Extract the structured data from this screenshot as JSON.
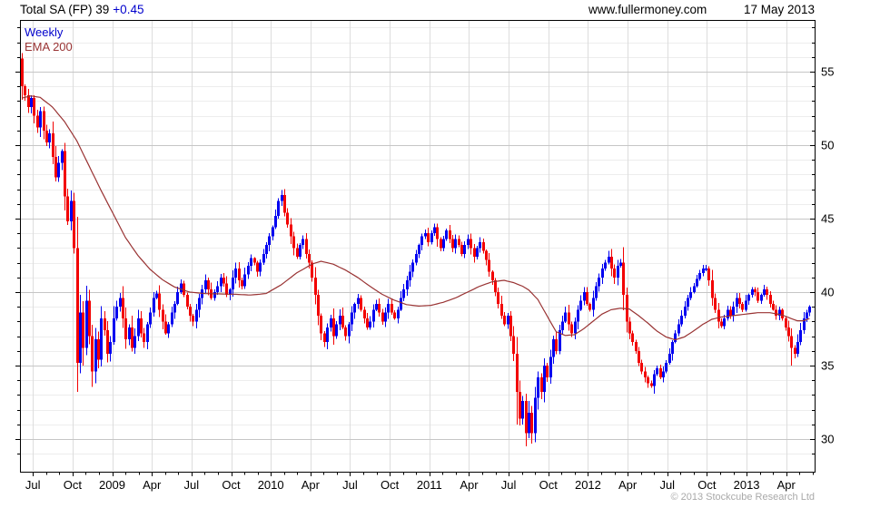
{
  "header": {
    "title": "Total SA (FP) 39",
    "change": "+0.45",
    "site": "www.fullermoney.com",
    "date": "17 May 2013"
  },
  "legend": {
    "weekly": "Weekly",
    "ema": "EMA 200"
  },
  "footer": {
    "copyright": "© 2013 Stockcube Research Ltd"
  },
  "colors": {
    "accent_blue": "#0000cc",
    "ema_red": "#993333",
    "text_black": "#000000",
    "copyright_gray": "#a9a9a9"
  },
  "chart_data": {
    "type": "candlestick",
    "title": "Total SA (FP) weekly candlestick chart with 200-period EMA, Jun 2008 - May 2013",
    "x_axis": {
      "tick_labels": [
        "Jul",
        "Oct",
        "2009",
        "Apr",
        "Jul",
        "Oct",
        "2010",
        "Apr",
        "Jul",
        "Oct",
        "2011",
        "Apr",
        "Jul",
        "Oct",
        "2012",
        "Apr",
        "Jul",
        "Oct",
        "2013",
        "Apr"
      ],
      "start": "Jun 2008",
      "end": "May 2013",
      "minor_tick": "monthly",
      "major_tick": "quarterly"
    },
    "y_axis": {
      "side": "right",
      "tick_values": [
        30,
        35,
        40,
        45,
        50,
        55
      ],
      "minor_step": 1,
      "range": [
        28.0,
        58.5
      ]
    },
    "grid": {
      "major_color": "#c6c6c6",
      "minor_color": "#ededed",
      "vertical_color": "#dddddd",
      "border_color": "#000000",
      "grid_on": true
    },
    "legend_position": "top-left",
    "series": [
      {
        "name": "Weekly",
        "type": "candlestick",
        "color_up": "#0000f0",
        "color_down": "#f20000",
        "weeks": 259,
        "first_open": 55.9,
        "wick_seed": 9,
        "weekly_closes": [
          54.0,
          53.4,
          52.6,
          53.2,
          52.0,
          51.2,
          52.3,
          51.0,
          50.2,
          50.8,
          49.2,
          47.8,
          48.8,
          49.6,
          46.5,
          44.8,
          46.2,
          43.0,
          35.2,
          38.6,
          36.2,
          39.4,
          37.0,
          34.6,
          36.8,
          35.4,
          38.2,
          37.4,
          35.8,
          36.6,
          38.2,
          39.0,
          39.6,
          38.2,
          36.8,
          37.6,
          36.2,
          37.0,
          38.2,
          37.2,
          36.6,
          37.8,
          38.6,
          39.6,
          39.9,
          38.8,
          38.0,
          37.2,
          37.8,
          38.6,
          39.2,
          40.0,
          40.6,
          39.8,
          39.0,
          38.4,
          38.0,
          38.8,
          39.6,
          40.2,
          40.8,
          40.2,
          39.6,
          40.0,
          40.4,
          41.0,
          40.6,
          39.8,
          40.2,
          41.0,
          41.6,
          40.8,
          40.4,
          41.2,
          41.8,
          42.3,
          42.0,
          41.4,
          42.0,
          42.6,
          43.2,
          43.8,
          44.4,
          45.2,
          46.2,
          46.6,
          45.4,
          44.6,
          43.8,
          43.0,
          42.4,
          43.2,
          43.6,
          42.6,
          42.0,
          41.0,
          39.8,
          38.4,
          37.2,
          36.6,
          37.6,
          38.2,
          37.0,
          37.8,
          38.4,
          37.6,
          37.0,
          37.8,
          38.6,
          39.2,
          39.6,
          38.8,
          38.2,
          37.6,
          38.0,
          38.8,
          39.2,
          38.6,
          38.0,
          38.6,
          39.2,
          38.6,
          38.2,
          38.8,
          39.6,
          40.2,
          40.8,
          41.4,
          42.0,
          42.6,
          43.2,
          43.8,
          44.0,
          43.4,
          44.0,
          44.4,
          43.6,
          43.0,
          43.6,
          44.2,
          43.6,
          43.0,
          43.6,
          43.2,
          42.6,
          43.2,
          43.6,
          43.0,
          42.4,
          43.0,
          43.4,
          42.8,
          42.2,
          41.4,
          40.8,
          40.0,
          39.2,
          38.4,
          37.8,
          38.4,
          37.0,
          35.8,
          33.2,
          31.4,
          32.6,
          30.4,
          31.8,
          30.4,
          32.8,
          34.2,
          33.2,
          35.0,
          34.2,
          35.6,
          36.8,
          36.0,
          37.4,
          38.0,
          38.6,
          37.8,
          37.2,
          38.0,
          38.8,
          39.4,
          40.0,
          39.2,
          38.8,
          39.6,
          40.4,
          41.0,
          41.6,
          42.0,
          42.4,
          41.6,
          41.0,
          41.8,
          42.0,
          39.8,
          38.0,
          37.2,
          36.6,
          36.0,
          35.2,
          34.6,
          34.2,
          33.8,
          33.6,
          34.4,
          34.8,
          34.2,
          34.6,
          35.2,
          35.8,
          36.6,
          37.2,
          37.8,
          38.4,
          39.0,
          39.6,
          40.0,
          40.4,
          40.9,
          41.3,
          41.6,
          41.6,
          40.8,
          39.6,
          38.8,
          38.0,
          37.7,
          38.2,
          38.8,
          38.4,
          39.0,
          39.6,
          39.2,
          38.8,
          39.4,
          39.8,
          40.2,
          40.0,
          39.4,
          39.8,
          40.2,
          39.8,
          39.2,
          38.8,
          38.4,
          38.8,
          38.2,
          37.6,
          37.0,
          36.2,
          35.8,
          36.6,
          37.4,
          38.2,
          38.6,
          39.0
        ],
        "extremes": {
          "0": {
            "high": 56.0
          },
          "18": {
            "low": 33.2
          },
          "23": {
            "low": 33.6
          },
          "85": {
            "high": 46.95
          },
          "135": {
            "high": 44.6
          },
          "162": {
            "low": 31.0
          },
          "165": {
            "low": 29.5
          },
          "167": {
            "low": 29.7
          },
          "192": {
            "high": 42.8
          },
          "224": {
            "high": 41.85
          },
          "252": {
            "low": 35.0
          }
        }
      },
      {
        "name": "EMA 200",
        "type": "line",
        "color": "#993333",
        "anchors": [
          [
            0,
            53.2
          ],
          [
            3,
            53.35
          ],
          [
            6,
            53.25
          ],
          [
            10,
            52.6
          ],
          [
            14,
            51.6
          ],
          [
            18,
            50.3
          ],
          [
            22,
            48.6
          ],
          [
            26,
            46.9
          ],
          [
            30,
            45.3
          ],
          [
            34,
            43.7
          ],
          [
            38,
            42.5
          ],
          [
            42,
            41.55
          ],
          [
            46,
            40.85
          ],
          [
            50,
            40.35
          ],
          [
            55,
            40.0
          ],
          [
            60,
            39.9
          ],
          [
            70,
            39.85
          ],
          [
            75,
            39.8
          ],
          [
            80,
            39.9
          ],
          [
            85,
            40.5
          ],
          [
            90,
            41.3
          ],
          [
            95,
            41.9
          ],
          [
            98,
            42.1
          ],
          [
            102,
            41.9
          ],
          [
            106,
            41.5
          ],
          [
            110,
            41.0
          ],
          [
            114,
            40.4
          ],
          [
            118,
            39.85
          ],
          [
            122,
            39.45
          ],
          [
            126,
            39.15
          ],
          [
            130,
            39.05
          ],
          [
            134,
            39.1
          ],
          [
            138,
            39.3
          ],
          [
            142,
            39.6
          ],
          [
            146,
            40.0
          ],
          [
            150,
            40.4
          ],
          [
            154,
            40.7
          ],
          [
            158,
            40.8
          ],
          [
            161,
            40.65
          ],
          [
            164,
            40.4
          ],
          [
            166,
            40.15
          ],
          [
            169,
            39.5
          ],
          [
            172,
            38.4
          ],
          [
            175,
            37.3
          ],
          [
            178,
            37.05
          ],
          [
            181,
            37.1
          ],
          [
            184,
            37.5
          ],
          [
            187,
            38.0
          ],
          [
            190,
            38.5
          ],
          [
            193,
            38.8
          ],
          [
            196,
            38.9
          ],
          [
            199,
            38.85
          ],
          [
            202,
            38.4
          ],
          [
            205,
            37.9
          ],
          [
            208,
            37.35
          ],
          [
            211,
            36.95
          ],
          [
            214,
            36.75
          ],
          [
            217,
            36.95
          ],
          [
            220,
            37.35
          ],
          [
            223,
            37.8
          ],
          [
            226,
            38.15
          ],
          [
            229,
            38.3
          ],
          [
            233,
            38.4
          ],
          [
            237,
            38.5
          ],
          [
            241,
            38.6
          ],
          [
            245,
            38.6
          ],
          [
            249,
            38.45
          ],
          [
            252,
            38.2
          ],
          [
            254,
            38.05
          ],
          [
            256,
            38.05
          ],
          [
            258,
            38.2
          ]
        ]
      }
    ]
  }
}
